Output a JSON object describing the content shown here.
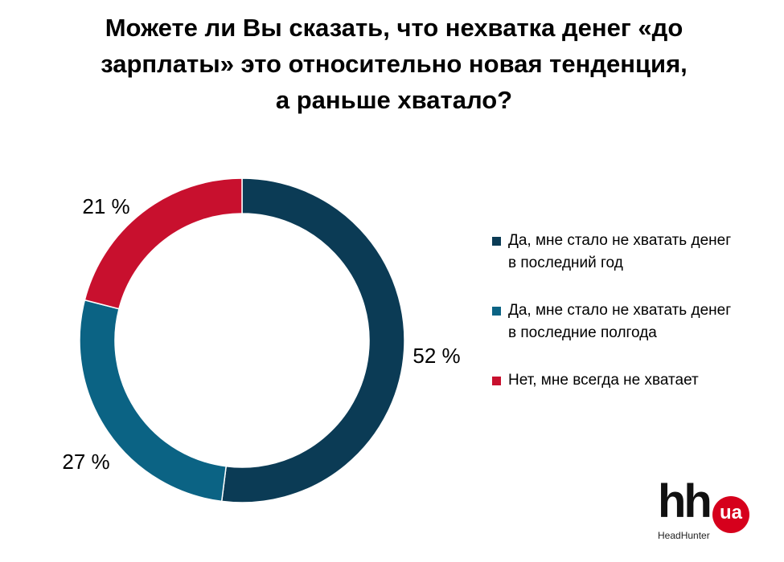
{
  "title": "Можете ли Вы сказать, что нехватка денег «до зарплаты» это относительно новая тенденция, а раньше хватало?",
  "title_lines": [
    "Можете ли Вы сказать, что нехватка денег «до",
    "зарплаты» это относительно новая тенденция,",
    "а раньше хватало?"
  ],
  "chart_data": {
    "type": "pie",
    "variant": "donut",
    "title": "Можете ли Вы сказать, что нехватка денег «до зарплаты» это относительно новая тенденция, а раньше хватало?",
    "unit": "%",
    "slices": [
      {
        "label": "Да, мне стало не хватать денег в последний год",
        "value": 52,
        "display": "52 %",
        "color": "#0b3b55"
      },
      {
        "label": "Да, мне стало не хватать денег в последние полгода",
        "value": 27,
        "display": "27 %",
        "color": "#0b6384"
      },
      {
        "label": "Нет, мне всегда не хватает",
        "value": 21,
        "display": "21 %",
        "color": "#c8102e"
      }
    ],
    "legend_position": "right"
  },
  "legend": {
    "items": [
      {
        "lines": [
          "Да, мне стало не хватать денег",
          "в последний год"
        ],
        "color": "#0b3b55"
      },
      {
        "lines": [
          "Да, мне стало не хватать денег",
          "в последние полгода"
        ],
        "color": "#0b6384"
      },
      {
        "lines": [
          "Нет, мне всегда не хватает"
        ],
        "color": "#c8102e"
      }
    ]
  },
  "logo": {
    "mark": "hh",
    "badge": "ua",
    "caption": "HeadHunter",
    "badge_color": "#d6001c"
  }
}
